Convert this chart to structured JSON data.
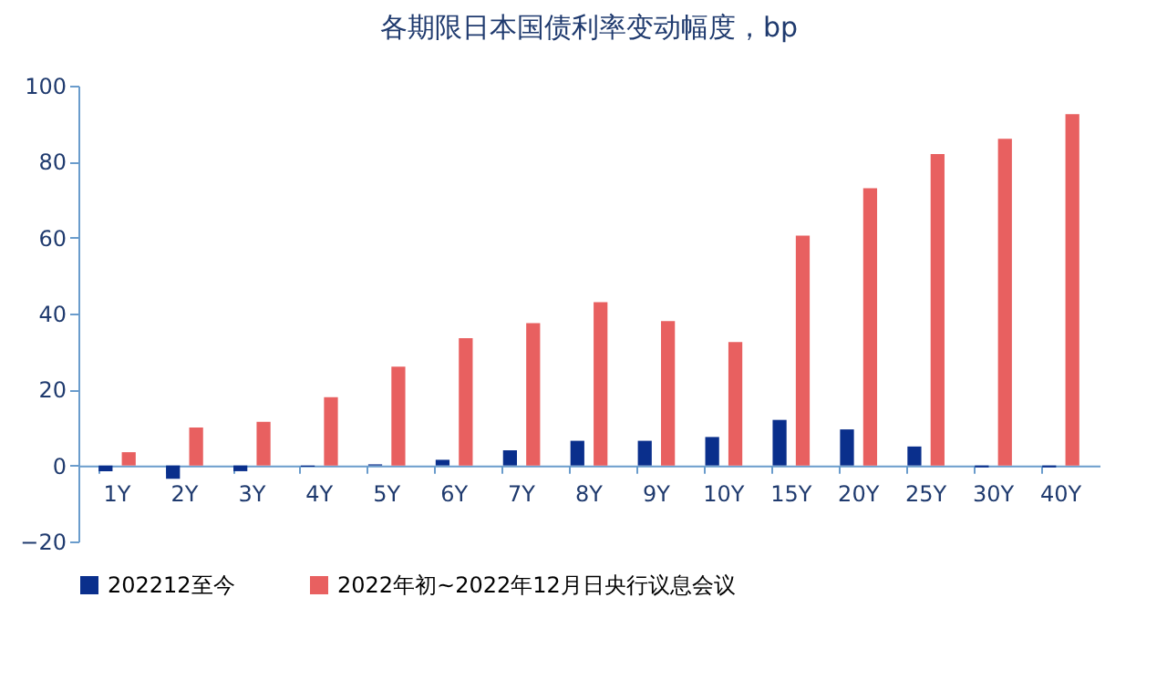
{
  "chart_data": {
    "type": "bar",
    "title": "各期限日本国债利率变动幅度，bp",
    "categories": [
      "1Y",
      "2Y",
      "3Y",
      "4Y",
      "5Y",
      "6Y",
      "7Y",
      "8Y",
      "9Y",
      "10Y",
      "15Y",
      "20Y",
      "25Y",
      "30Y",
      "40Y"
    ],
    "series": [
      {
        "name": "202212至今",
        "color": "#0a2f8c",
        "values": [
          -1.5,
          -3.5,
          -1.5,
          -0.3,
          0.3,
          1.5,
          4,
          6.5,
          6.5,
          7.5,
          12,
          9.5,
          5,
          -0.5,
          -0.5
        ]
      },
      {
        "name": "2022年初~2022年12月日央行议息会议",
        "color": "#e86060",
        "values": [
          3.5,
          10,
          11.5,
          18,
          26,
          33.5,
          37.5,
          43,
          38,
          32.5,
          60.5,
          73,
          82,
          86,
          92.5
        ]
      }
    ],
    "ylim": [
      -20,
      100
    ],
    "yticks": [
      -20,
      0,
      20,
      40,
      60,
      80,
      100
    ],
    "grid": false,
    "legend": "bottom"
  }
}
